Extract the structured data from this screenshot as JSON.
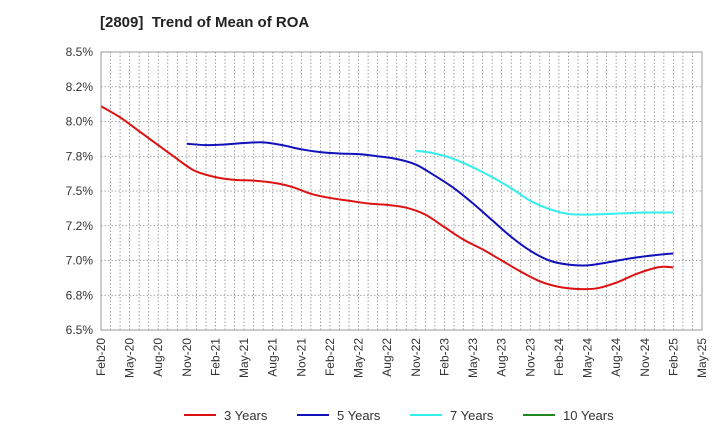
{
  "chart_data": {
    "type": "line",
    "title": "[2809]  Trend of Mean of ROA",
    "xlabel": "",
    "ylabel": "",
    "ylim": [
      6.5,
      8.5
    ],
    "yticks": [
      6.5,
      6.75,
      7.0,
      7.25,
      7.5,
      7.75,
      8.0,
      8.25,
      8.5
    ],
    "ytick_labels": [
      "6.5%",
      "6.8%",
      "7.0%",
      "7.2%",
      "7.5%",
      "7.8%",
      "8.0%",
      "8.2%",
      "8.5%"
    ],
    "x_min": 0,
    "x_max": 60,
    "x_ticks": [
      {
        "m": 0,
        "label": "Feb-20"
      },
      {
        "m": 3,
        "label": "May-20"
      },
      {
        "m": 6,
        "label": "Aug-20"
      },
      {
        "m": 9,
        "label": "Nov-20"
      },
      {
        "m": 12,
        "label": "Feb-21"
      },
      {
        "m": 15,
        "label": "May-21"
      },
      {
        "m": 18,
        "label": "Aug-21"
      },
      {
        "m": 21,
        "label": "Nov-21"
      },
      {
        "m": 24,
        "label": "Feb-22"
      },
      {
        "m": 27,
        "label": "May-22"
      },
      {
        "m": 30,
        "label": "Aug-22"
      },
      {
        "m": 33,
        "label": "Nov-22"
      },
      {
        "m": 36,
        "label": "Feb-23"
      },
      {
        "m": 39,
        "label": "May-23"
      },
      {
        "m": 42,
        "label": "Aug-23"
      },
      {
        "m": 45,
        "label": "Nov-23"
      },
      {
        "m": 48,
        "label": "Feb-24"
      },
      {
        "m": 51,
        "label": "May-24"
      },
      {
        "m": 54,
        "label": "Aug-24"
      },
      {
        "m": 57,
        "label": "Nov-24"
      },
      {
        "m": 60,
        "label": "Feb-25"
      },
      {
        "m": 63,
        "label": "May-25"
      }
    ],
    "grid": true,
    "legend_position": "bottom",
    "series": [
      {
        "name": "3 Years",
        "color": "#dd1111",
        "points": [
          [
            0,
            8.11
          ],
          [
            2,
            8.03
          ],
          [
            4,
            7.93
          ],
          [
            6,
            7.83
          ],
          [
            8,
            7.73
          ],
          [
            9,
            7.68
          ],
          [
            10,
            7.64
          ],
          [
            12,
            7.6
          ],
          [
            14,
            7.58
          ],
          [
            16,
            7.575
          ],
          [
            18,
            7.56
          ],
          [
            20,
            7.53
          ],
          [
            22,
            7.48
          ],
          [
            24,
            7.45
          ],
          [
            26,
            7.43
          ],
          [
            28,
            7.41
          ],
          [
            30,
            7.4
          ],
          [
            32,
            7.38
          ],
          [
            34,
            7.33
          ],
          [
            36,
            7.24
          ],
          [
            38,
            7.15
          ],
          [
            40,
            7.08
          ],
          [
            42,
            7.0
          ],
          [
            44,
            6.92
          ],
          [
            46,
            6.85
          ],
          [
            48,
            6.81
          ],
          [
            50,
            6.795
          ],
          [
            52,
            6.8
          ],
          [
            54,
            6.84
          ],
          [
            56,
            6.9
          ],
          [
            58,
            6.945
          ],
          [
            59,
            6.955
          ],
          [
            60,
            6.95
          ]
        ]
      },
      {
        "name": "5 Years",
        "color": "#1111bb",
        "points": [
          [
            9,
            7.84
          ],
          [
            11,
            7.83
          ],
          [
            13,
            7.835
          ],
          [
            15,
            7.845
          ],
          [
            17,
            7.85
          ],
          [
            19,
            7.83
          ],
          [
            21,
            7.8
          ],
          [
            23,
            7.78
          ],
          [
            25,
            7.77
          ],
          [
            27,
            7.765
          ],
          [
            29,
            7.75
          ],
          [
            31,
            7.73
          ],
          [
            33,
            7.69
          ],
          [
            35,
            7.61
          ],
          [
            37,
            7.52
          ],
          [
            39,
            7.41
          ],
          [
            41,
            7.29
          ],
          [
            43,
            7.17
          ],
          [
            45,
            7.07
          ],
          [
            47,
            7.0
          ],
          [
            49,
            6.97
          ],
          [
            51,
            6.965
          ],
          [
            53,
            6.985
          ],
          [
            55,
            7.01
          ],
          [
            57,
            7.03
          ],
          [
            59,
            7.045
          ],
          [
            60,
            7.05
          ]
        ]
      },
      {
        "name": "7 Years",
        "color": "#33eeee",
        "points": [
          [
            33,
            7.79
          ],
          [
            35,
            7.77
          ],
          [
            37,
            7.73
          ],
          [
            39,
            7.67
          ],
          [
            41,
            7.6
          ],
          [
            43,
            7.52
          ],
          [
            45,
            7.43
          ],
          [
            47,
            7.37
          ],
          [
            49,
            7.335
          ],
          [
            51,
            7.33
          ],
          [
            53,
            7.335
          ],
          [
            55,
            7.34
          ],
          [
            57,
            7.345
          ],
          [
            59,
            7.345
          ],
          [
            60,
            7.345
          ]
        ]
      },
      {
        "name": "10 Years",
        "color": "#228822",
        "points": []
      }
    ]
  }
}
